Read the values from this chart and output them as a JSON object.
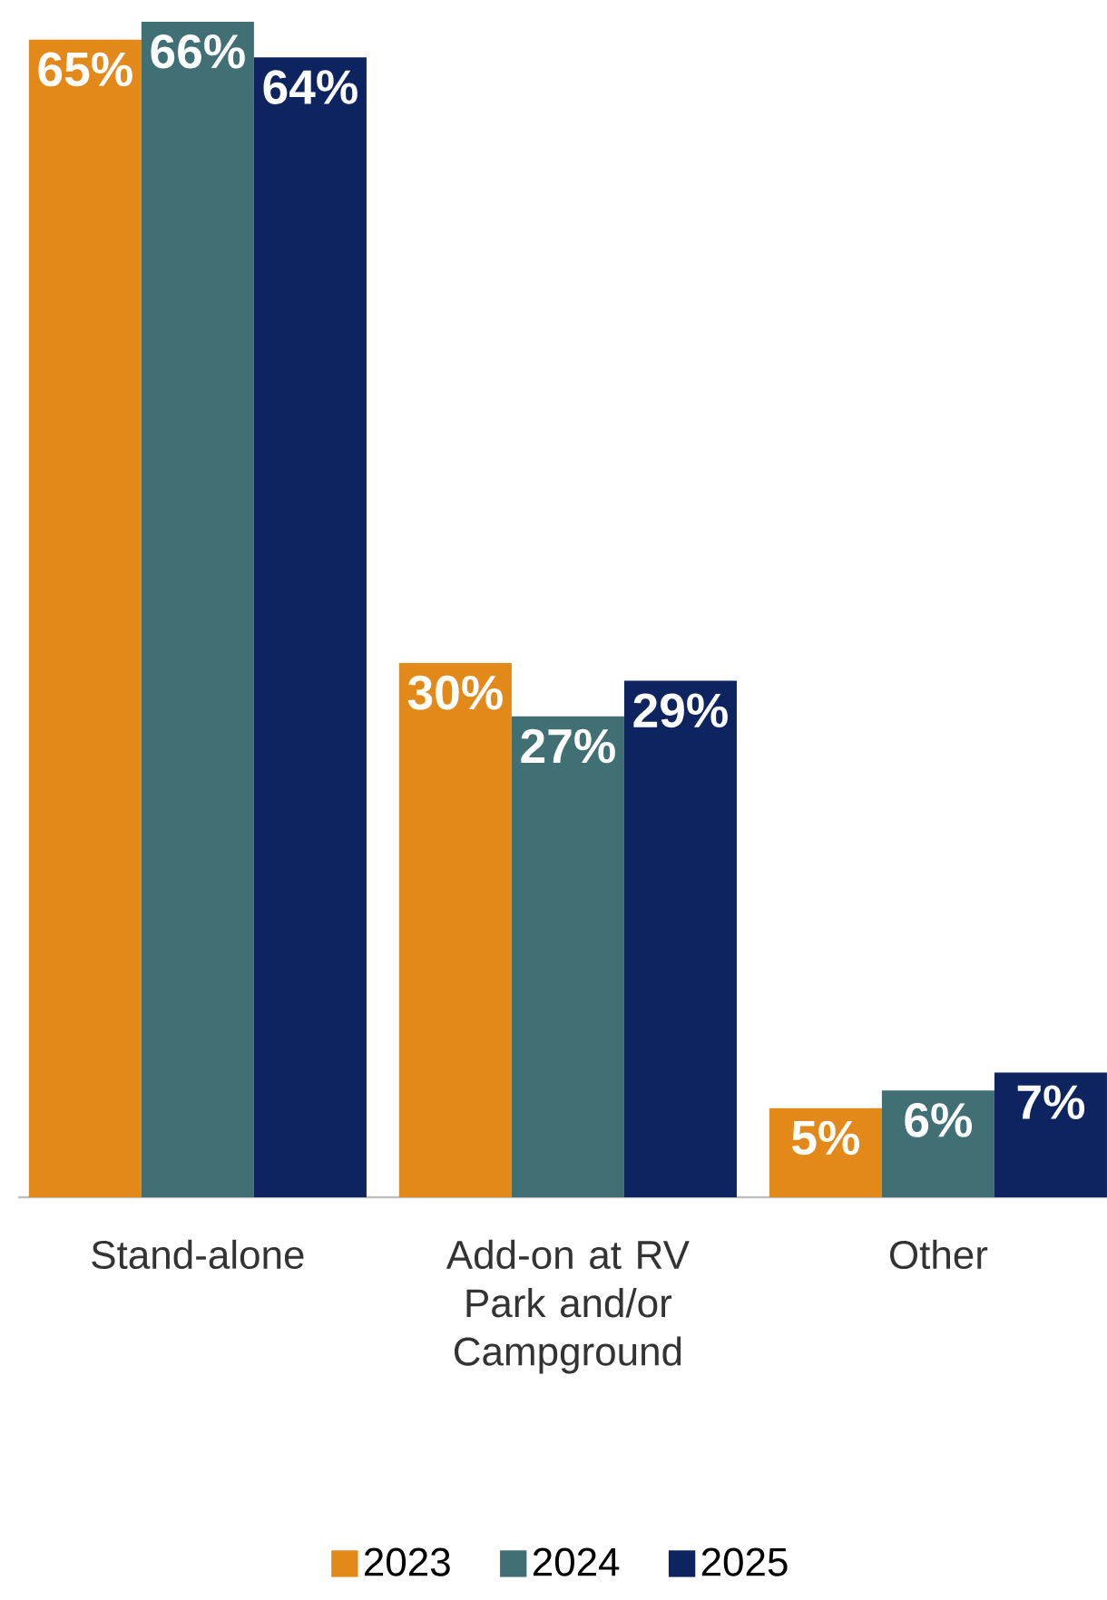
{
  "chart_data": {
    "type": "bar",
    "categories": [
      "Stand-alone",
      "Add-on at RV Park and/or Campground",
      "Other"
    ],
    "series": [
      {
        "name": "2023",
        "color": "#e3891a",
        "values": [
          65,
          30,
          5
        ],
        "value_labels": [
          "65%",
          "30%",
          "5%"
        ]
      },
      {
        "name": "2024",
        "color": "#407073",
        "values": [
          66,
          27,
          6
        ],
        "value_labels": [
          "66%",
          "27%",
          "6%"
        ]
      },
      {
        "name": "2025",
        "color": "#0e2460",
        "values": [
          64,
          29,
          7
        ],
        "value_labels": [
          "64%",
          "29%",
          "7%"
        ]
      }
    ],
    "legend": "bottom"
  }
}
